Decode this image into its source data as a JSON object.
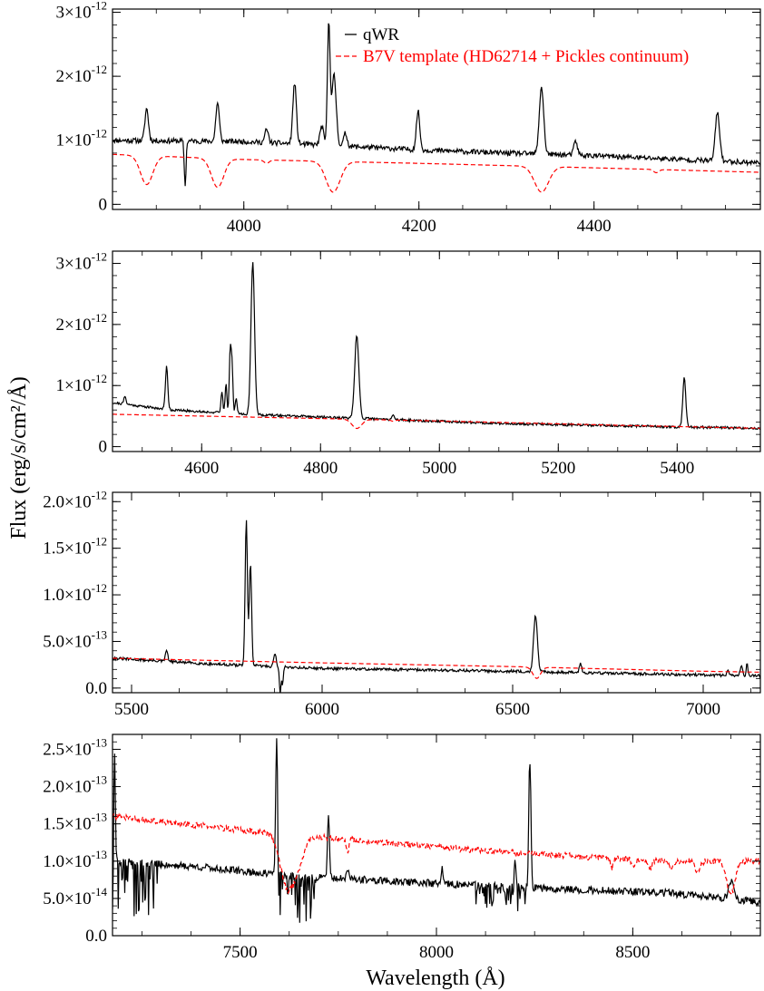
{
  "figure": {
    "ylabel": "Flux (erg/s/cm²/Å)",
    "xlabel": "Wavelength (Å)"
  },
  "legend": {
    "placement": "top-center of first panel",
    "entries": [
      {
        "label": "qWR",
        "color": "#000000",
        "style": "solid"
      },
      {
        "label": "B7V template (HD62714 + Pickles continuum)",
        "color": "#ff0000",
        "style": "dashed"
      }
    ]
  },
  "chart_data": [
    {
      "type": "line",
      "panel": 1,
      "xlim": [
        3850,
        4590
      ],
      "ylim": [
        -8e-14,
        3.05e-12
      ],
      "xticks": [
        {
          "value": 4000,
          "label": "4000"
        },
        {
          "value": 4200,
          "label": "4200"
        },
        {
          "value": 4400,
          "label": "4400"
        }
      ],
      "yticks": [
        {
          "value": 0,
          "mant": "0",
          "exp": ""
        },
        {
          "value": 1e-12,
          "mant": "1×10",
          "exp": "-12"
        },
        {
          "value": 2e-12,
          "mant": "2×10",
          "exp": "-12"
        },
        {
          "value": 3e-12,
          "mant": "3×10",
          "exp": "-12"
        }
      ],
      "series": [
        {
          "name": "qWR",
          "color": "#000000",
          "dashed": false,
          "continuum": [
            [
              3850,
              1e-12
            ],
            [
              4000,
              9.8e-13
            ],
            [
              4100,
              9.2e-13
            ],
            [
              4200,
              8.5e-13
            ],
            [
              4300,
              8e-13
            ],
            [
              4400,
              7.6e-13
            ],
            [
              4500,
              7e-13
            ],
            [
              4590,
              6.5e-13
            ]
          ],
          "lines": [
            [
              3889,
              5e-13,
              2
            ],
            [
              3933,
              -7e-13,
              1
            ],
            [
              3970,
              6e-13,
              2
            ],
            [
              4026,
              2e-13,
              2
            ],
            [
              4058,
              9.5e-13,
              2
            ],
            [
              4089,
              3e-13,
              2
            ],
            [
              4097,
              1.9e-12,
              1.5
            ],
            [
              4103,
              1.1e-12,
              2.5
            ],
            [
              4116,
              2e-13,
              2
            ],
            [
              4199,
              6e-13,
              2
            ],
            [
              4340,
              1.05e-12,
              2.5
            ],
            [
              4379,
              2.2e-13,
              2
            ],
            [
              4541,
              7.5e-13,
              2.5
            ]
          ],
          "noise": 4e-14,
          "seed": 11
        },
        {
          "name": "B7V template",
          "color": "#ff0000",
          "dashed": true,
          "continuum": [
            [
              3850,
              7.8e-13
            ],
            [
              4000,
              7e-13
            ],
            [
              4200,
              6.4e-13
            ],
            [
              4400,
              5.7e-13
            ],
            [
              4590,
              5e-13
            ]
          ],
          "lines": [
            [
              3889,
              -4.5e-13,
              7
            ],
            [
              3970,
              -4.5e-13,
              7
            ],
            [
              4026,
              -5e-14,
              3
            ],
            [
              4102,
              -4.8e-13,
              8
            ],
            [
              4340,
              -4e-13,
              8
            ],
            [
              4471,
              -5e-14,
              3
            ]
          ],
          "noise": 0,
          "seed": 3
        }
      ]
    },
    {
      "type": "line",
      "panel": 2,
      "xlim": [
        4450,
        5540
      ],
      "ylim": [
        -8e-14,
        3.2e-12
      ],
      "xticks": [
        {
          "value": 4600,
          "label": "4600"
        },
        {
          "value": 4800,
          "label": "4800"
        },
        {
          "value": 5000,
          "label": "5000"
        },
        {
          "value": 5200,
          "label": "5200"
        },
        {
          "value": 5400,
          "label": "5400"
        }
      ],
      "yticks": [
        {
          "value": 0,
          "mant": "0",
          "exp": ""
        },
        {
          "value": 1e-12,
          "mant": "1×10",
          "exp": "-12"
        },
        {
          "value": 2e-12,
          "mant": "2×10",
          "exp": "-12"
        },
        {
          "value": 3e-12,
          "mant": "3×10",
          "exp": "-12"
        }
      ],
      "series": [
        {
          "name": "qWR",
          "color": "#000000",
          "dashed": false,
          "continuum": [
            [
              4450,
              7.2e-13
            ],
            [
              4550,
              6e-13
            ],
            [
              4700,
              5.2e-13
            ],
            [
              4900,
              4.5e-13
            ],
            [
              5100,
              3.8e-13
            ],
            [
              5300,
              3.4e-13
            ],
            [
              5540,
              3e-13
            ]
          ],
          "lines": [
            [
              4471,
              1.2e-13,
              2
            ],
            [
              4541,
              7e-13,
              2
            ],
            [
              4634,
              3.5e-13,
              1.5
            ],
            [
              4641,
              5e-13,
              1.5
            ],
            [
              4648,
              1e-12,
              1.5
            ],
            [
              4651,
              8e-13,
              1.5
            ],
            [
              4658,
              2.5e-13,
              1.5
            ],
            [
              4686,
              2.48e-12,
              3
            ],
            [
              4861,
              1.35e-12,
              3.5
            ],
            [
              4922,
              8e-14,
              2
            ],
            [
              5412,
              8e-13,
              2.5
            ]
          ],
          "noise": 2e-14,
          "seed": 21
        },
        {
          "name": "B7V template",
          "color": "#ff0000",
          "dashed": true,
          "continuum": [
            [
              4450,
              5.3e-13
            ],
            [
              4700,
              4.8e-13
            ],
            [
              5000,
              4.2e-13
            ],
            [
              5300,
              3.5e-13
            ],
            [
              5540,
              3e-13
            ]
          ],
          "lines": [
            [
              4861,
              -1.5e-13,
              8
            ],
            [
              4922,
              -2e-14,
              3
            ]
          ],
          "noise": 0,
          "seed": 4
        }
      ]
    },
    {
      "type": "line",
      "panel": 3,
      "xlim": [
        5450,
        7150
      ],
      "ylim": [
        -5e-14,
        2.1e-12
      ],
      "xticks": [
        {
          "value": 5500,
          "label": "5500"
        },
        {
          "value": 6000,
          "label": "6000"
        },
        {
          "value": 6500,
          "label": "6500"
        },
        {
          "value": 7000,
          "label": "7000"
        }
      ],
      "yticks": [
        {
          "value": 0,
          "mant": "0.0",
          "exp": ""
        },
        {
          "value": 5e-13,
          "mant": "5.0×10",
          "exp": "-13"
        },
        {
          "value": 1e-12,
          "mant": "1.0×10",
          "exp": "-12"
        },
        {
          "value": 1.5e-12,
          "mant": "1.5×10",
          "exp": "-12"
        },
        {
          "value": 2e-12,
          "mant": "2.0×10",
          "exp": "-12"
        }
      ],
      "series": [
        {
          "name": "qWR",
          "color": "#000000",
          "dashed": false,
          "continuum": [
            [
              5450,
              3.2e-13
            ],
            [
              5700,
              2.6e-13
            ],
            [
              6000,
              2.1e-13
            ],
            [
              6500,
              1.8e-13
            ],
            [
              7000,
              1.4e-13
            ],
            [
              7150,
              1.3e-13
            ]
          ],
          "lines": [
            [
              5592,
              1.2e-13,
              3
            ],
            [
              5801,
              1.55e-12,
              3
            ],
            [
              5812,
              1.1e-12,
              3
            ],
            [
              5876,
              1.5e-13,
              3
            ],
            [
              5890,
              -3e-13,
              2
            ],
            [
              5896,
              -2e-13,
              2
            ],
            [
              6560,
              6e-13,
              5
            ],
            [
              6678,
              1e-13,
              3
            ],
            [
              7065,
              5e-14,
              3
            ],
            [
              7100,
              1e-13,
              3
            ],
            [
              7115,
              1.5e-13,
              2
            ]
          ],
          "noise": 1.5e-14,
          "seed": 31
        },
        {
          "name": "B7V template",
          "color": "#ff0000",
          "dashed": true,
          "continuum": [
            [
              5450,
              3.2e-13
            ],
            [
              6000,
              2.7e-13
            ],
            [
              6500,
              2.3e-13
            ],
            [
              7000,
              1.8e-13
            ],
            [
              7150,
              1.7e-13
            ]
          ],
          "lines": [
            [
              6563,
              -1.2e-13,
              10
            ]
          ],
          "noise": 0,
          "seed": 5
        }
      ]
    },
    {
      "type": "line",
      "panel": 4,
      "xlim": [
        7175,
        8825
      ],
      "ylim": [
        0,
        2.7e-13
      ],
      "xticks": [
        {
          "value": 7500,
          "label": "7500"
        },
        {
          "value": 8000,
          "label": "8000"
        },
        {
          "value": 8500,
          "label": "8500"
        }
      ],
      "yticks": [
        {
          "value": 0,
          "mant": "0.0",
          "exp": ""
        },
        {
          "value": 5e-14,
          "mant": "5.0×10",
          "exp": "-14"
        },
        {
          "value": 1e-13,
          "mant": "1.0×10",
          "exp": "-13"
        },
        {
          "value": 1.5e-13,
          "mant": "1.5×10",
          "exp": "-13"
        },
        {
          "value": 2e-13,
          "mant": "2.0×10",
          "exp": "-13"
        },
        {
          "value": 2.5e-13,
          "mant": "2.5×10",
          "exp": "-13"
        }
      ],
      "series": [
        {
          "name": "qWR",
          "color": "#000000",
          "dashed": false,
          "continuum": [
            [
              7175,
              1e-13
            ],
            [
              7400,
              9.2e-14
            ],
            [
              7590,
              8.2e-14
            ],
            [
              7700,
              7.8e-14
            ],
            [
              8000,
              7e-14
            ],
            [
              8300,
              6.3e-14
            ],
            [
              8600,
              5.7e-14
            ],
            [
              8825,
              4.5e-14
            ]
          ],
          "lines": [
            [
              7180,
              1.5e-13,
              2
            ],
            [
              7593,
              1.8e-13,
              2.5
            ],
            [
              7725,
              8.5e-14,
              2.5
            ],
            [
              7774,
              1.5e-14,
              2
            ],
            [
              8015,
              2e-14,
              2
            ],
            [
              8200,
              4e-14,
              2
            ],
            [
              8238,
              1.9e-13,
              2.5
            ],
            [
              8750,
              2.5e-14,
              6
            ]
          ],
          "absorb": [
            [
              7175,
              7290,
              7.5e-14
            ],
            [
              7595,
              7700,
              6e-14
            ],
            [
              8100,
              8240,
              3e-14
            ]
          ],
          "noise": 5e-15,
          "seed": 41
        },
        {
          "name": "B7V template",
          "color": "#ff0000",
          "dashed": true,
          "continuum": [
            [
              7175,
              1.6e-13
            ],
            [
              7500,
              1.42e-13
            ],
            [
              7800,
              1.28e-13
            ],
            [
              8100,
              1.15e-13
            ],
            [
              8400,
              1.05e-13
            ],
            [
              8600,
              1e-13
            ],
            [
              8825,
              1e-13
            ]
          ],
          "lines": [
            [
              7620,
              -7e-14,
              18
            ],
            [
              7650,
              -3e-14,
              15
            ],
            [
              7774,
              -1.5e-14,
              3
            ],
            [
              8446,
              -1.5e-14,
              3
            ],
            [
              8502,
              -1e-14,
              5
            ],
            [
              8545,
              -1e-14,
              5
            ],
            [
              8598,
              -1e-14,
              6
            ],
            [
              8665,
              -1.5e-14,
              7
            ],
            [
              8750,
              -4.5e-14,
              10
            ]
          ],
          "noise": 4e-15,
          "seed": 6
        }
      ]
    }
  ]
}
